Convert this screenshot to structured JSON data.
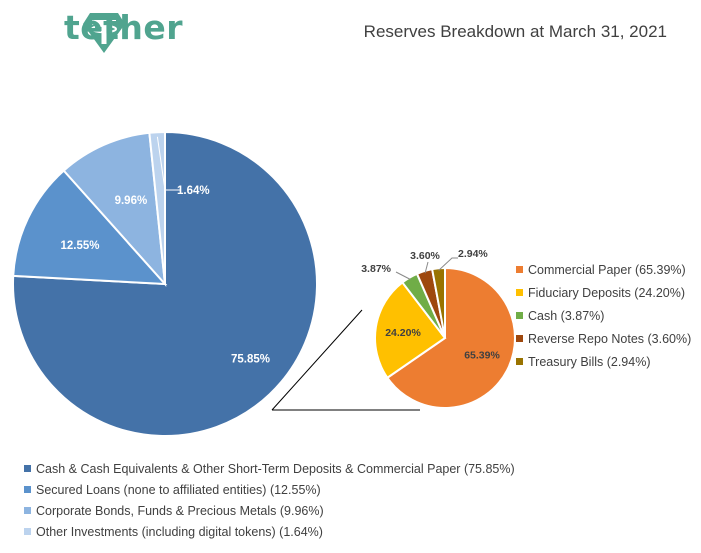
{
  "header": {
    "brand": "tether",
    "logo_icon": "tether-logo-icon",
    "brand_color": "#50A48F"
  },
  "chart_data": [
    {
      "type": "pie",
      "title": "Reserves Breakdown at March 31, 2021",
      "slices": [
        {
          "name": "Cash & Cash Equivalents & Other Short-Term Deposits & Commercial Paper (75.85%)",
          "value": 75.85,
          "label": "75.85%",
          "color": "#4472A8"
        },
        {
          "name": "Secured Loans (none to affiliated entities) (12.55%)",
          "value": 12.55,
          "label": "12.55%",
          "color": "#5B92CC"
        },
        {
          "name": "Corporate Bonds, Funds & Precious Metals (9.96%)",
          "value": 9.96,
          "label": "9.96%",
          "color": "#8DB4E0"
        },
        {
          "name": "Other Investments (including digital tokens) (1.64%)",
          "value": 1.64,
          "label": "1.64%",
          "color": "#BCD3EE"
        }
      ],
      "legend_position": "bottom"
    },
    {
      "type": "pie",
      "title": "",
      "slices": [
        {
          "name": "Commercial Paper (65.39%)",
          "value": 65.39,
          "label": "65.39%",
          "color": "#ED7D31"
        },
        {
          "name": "Fiduciary Deposits (24.20%)",
          "value": 24.2,
          "label": "24.20%",
          "color": "#FFC000"
        },
        {
          "name": "Cash (3.87%)",
          "value": 3.87,
          "label": "3.87%",
          "color": "#70AD47"
        },
        {
          "name": "Reverse Repo Notes (3.60%)",
          "value": 3.6,
          "label": "3.60%",
          "color": "#9E480E"
        },
        {
          "name": "Treasury Bills (2.94%)",
          "value": 2.94,
          "label": "2.94%",
          "color": "#997300"
        }
      ],
      "legend_position": "right"
    }
  ]
}
